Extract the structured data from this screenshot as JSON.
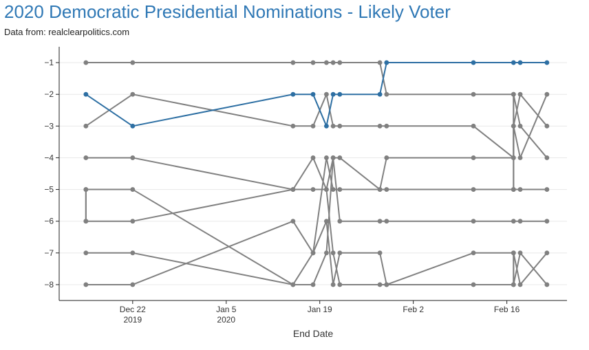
{
  "title": "2020 Democratic Presidential Nominations - Likely Voter",
  "subtitle": "Data from: realclearpolitics.com",
  "colors": {
    "title": "#2f78b5",
    "highlight": "#2d6fa3",
    "others": "#808080",
    "grid": "#e8e8e8",
    "axis": "#222222"
  },
  "chart_data": {
    "type": "line",
    "title": "2020 Democratic Presidential Nominations - Likely Voter",
    "xlabel": "End Date",
    "ylabel": "",
    "x_type": "date",
    "xlim": [
      "2019-12-11",
      "2020-02-25"
    ],
    "ylim": [
      -8.5,
      -0.5
    ],
    "y_ticks": [
      -1,
      -2,
      -3,
      -4,
      -5,
      -6,
      -7,
      -8
    ],
    "x_ticks": [
      {
        "date": "2019-12-22",
        "label": "Dec 22",
        "label2": "2019"
      },
      {
        "date": "2020-01-05",
        "label": "Jan 5",
        "label2": "2020"
      },
      {
        "date": "2020-01-19",
        "label": "Jan 19",
        "label2": ""
      },
      {
        "date": "2020-02-02",
        "label": "Feb 2",
        "label2": ""
      },
      {
        "date": "2020-02-16",
        "label": "Feb 16",
        "label2": ""
      }
    ],
    "grid": "horizontal",
    "x": [
      "2019-12-15",
      "2019-12-22",
      "2020-01-15",
      "2020-01-18",
      "2020-01-20",
      "2020-01-21",
      "2020-01-22",
      "2020-01-23",
      "2020-01-28",
      "2020-01-29",
      "2020-02-11",
      "2020-02-17",
      "2020-02-18",
      "2020-02-22"
    ],
    "series": [
      {
        "highlight": false,
        "points": [
          [
            "2019-12-15",
            -1
          ],
          [
            "2019-12-22",
            -1
          ],
          [
            "2020-01-15",
            -1
          ],
          [
            "2020-01-18",
            -1
          ],
          [
            "2020-01-20",
            -1
          ],
          [
            "2020-01-21",
            -1
          ],
          [
            "2020-01-22",
            -1
          ],
          [
            "2020-01-28",
            -1
          ],
          [
            "2020-01-29",
            -2
          ],
          [
            "2020-02-11",
            -2
          ],
          [
            "2020-02-17",
            -2
          ],
          [
            "2020-02-17",
            -5
          ],
          [
            "2020-02-18",
            -5
          ],
          [
            "2020-02-22",
            -5
          ]
        ]
      },
      {
        "highlight": false,
        "points": [
          [
            "2019-12-15",
            -3
          ],
          [
            "2019-12-22",
            -2
          ],
          [
            "2020-01-15",
            -3
          ],
          [
            "2020-01-18",
            -3
          ],
          [
            "2020-01-20",
            -2
          ],
          [
            "2020-01-21",
            -3
          ],
          [
            "2020-01-22",
            -3
          ],
          [
            "2020-01-28",
            -3
          ],
          [
            "2020-01-29",
            -3
          ],
          [
            "2020-02-11",
            -3
          ],
          [
            "2020-02-17",
            -4
          ],
          [
            "2020-02-17",
            -3
          ],
          [
            "2020-02-18",
            -2
          ],
          [
            "2020-02-22",
            -3
          ]
        ]
      },
      {
        "highlight": false,
        "points": [
          [
            "2019-12-15",
            -4
          ],
          [
            "2019-12-22",
            -4
          ],
          [
            "2020-01-15",
            -5
          ],
          [
            "2020-01-18",
            -5
          ],
          [
            "2020-01-20",
            -5
          ],
          [
            "2020-01-21",
            -4
          ],
          [
            "2020-01-22",
            -4
          ],
          [
            "2020-01-28",
            -5
          ],
          [
            "2020-01-29",
            -5
          ],
          [
            "2020-02-11",
            -5
          ],
          [
            "2020-02-17",
            -5
          ],
          [
            "2020-02-17",
            -2
          ],
          [
            "2020-02-18",
            -3
          ],
          [
            "2020-02-22",
            -4
          ]
        ]
      },
      {
        "highlight": false,
        "points": [
          [
            "2019-12-15",
            -5
          ],
          [
            "2019-12-15",
            -6
          ],
          [
            "2019-12-22",
            -6
          ],
          [
            "2020-01-15",
            -5
          ],
          [
            "2020-01-18",
            -4
          ],
          [
            "2020-01-20",
            -5
          ],
          [
            "2020-01-21",
            -7
          ],
          [
            "2020-01-22",
            -8
          ],
          [
            "2020-01-28",
            -8
          ],
          [
            "2020-01-29",
            -8
          ],
          [
            "2020-02-11",
            -8
          ],
          [
            "2020-02-17",
            -8
          ],
          [
            "2020-02-17",
            -7
          ],
          [
            "2020-02-18",
            -8
          ],
          [
            "2020-02-22",
            -7
          ]
        ]
      },
      {
        "highlight": false,
        "points": [
          [
            "2019-12-15",
            -6
          ],
          [
            "2019-12-15",
            -5
          ],
          [
            "2019-12-22",
            -5
          ],
          [
            "2020-01-15",
            -8
          ],
          [
            "2020-01-18",
            -7
          ],
          [
            "2020-01-20",
            -6
          ],
          [
            "2020-01-21",
            -8
          ],
          [
            "2020-01-22",
            -7
          ],
          [
            "2020-01-28",
            -7
          ],
          [
            "2020-01-29",
            -8
          ],
          [
            "2020-02-11",
            -7
          ],
          [
            "2020-02-17",
            -7
          ],
          [
            "2020-02-17",
            -8
          ],
          [
            "2020-02-18",
            -7
          ],
          [
            "2020-02-22",
            -8
          ]
        ]
      },
      {
        "highlight": false,
        "points": [
          [
            "2019-12-15",
            -7
          ],
          [
            "2019-12-22",
            -7
          ],
          [
            "2020-01-15",
            -8
          ],
          [
            "2020-01-18",
            -8
          ],
          [
            "2020-01-20",
            -7
          ],
          [
            "2020-01-21",
            -4
          ],
          [
            "2020-01-22",
            -6
          ],
          [
            "2020-01-28",
            -6
          ],
          [
            "2020-01-29",
            -6
          ],
          [
            "2020-02-11",
            -6
          ],
          [
            "2020-02-17",
            -6
          ],
          [
            "2020-02-18",
            -6
          ],
          [
            "2020-02-22",
            -6
          ]
        ]
      },
      {
        "highlight": false,
        "points": [
          [
            "2019-12-15",
            -8
          ],
          [
            "2019-12-22",
            -8
          ],
          [
            "2020-01-15",
            -6
          ],
          [
            "2020-01-18",
            -7
          ],
          [
            "2020-01-20",
            -4
          ],
          [
            "2020-01-21",
            -5
          ],
          [
            "2020-01-22",
            -5
          ],
          [
            "2020-01-28",
            -5
          ],
          [
            "2020-01-29",
            -4
          ],
          [
            "2020-02-11",
            -4
          ],
          [
            "2020-02-17",
            -4
          ],
          [
            "2020-02-17",
            -3
          ],
          [
            "2020-02-18",
            -4
          ],
          [
            "2020-02-22",
            -2
          ]
        ]
      },
      {
        "highlight": true,
        "points": [
          [
            "2019-12-15",
            -2
          ],
          [
            "2019-12-22",
            -3
          ],
          [
            "2020-01-15",
            -2
          ],
          [
            "2020-01-18",
            -2
          ],
          [
            "2020-01-20",
            -3
          ],
          [
            "2020-01-21",
            -2
          ],
          [
            "2020-01-22",
            -2
          ],
          [
            "2020-01-28",
            -2
          ],
          [
            "2020-01-29",
            -1
          ],
          [
            "2020-02-11",
            -1
          ],
          [
            "2020-02-17",
            -1
          ],
          [
            "2020-02-18",
            -1
          ],
          [
            "2020-02-22",
            -1
          ]
        ]
      }
    ]
  }
}
